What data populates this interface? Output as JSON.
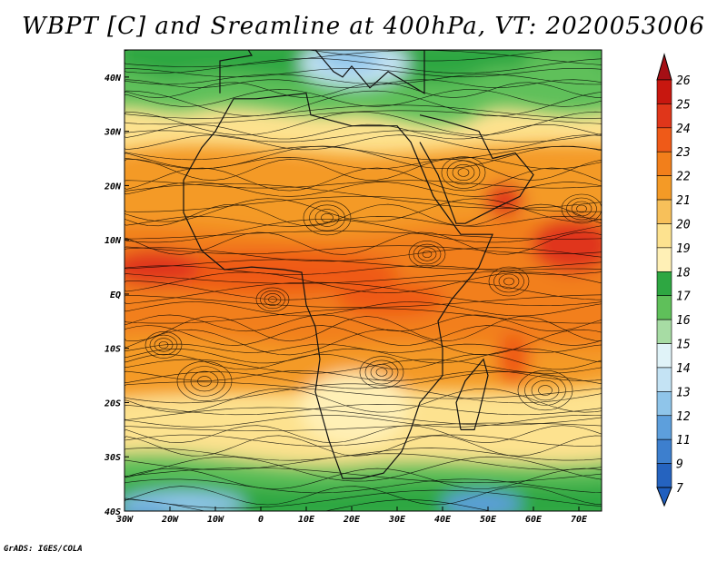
{
  "title": "WBPT [C] and Sreamline at 400hPa, VT: 2020053006",
  "credit": "GrADS: IGES/COLA",
  "map": {
    "lon_range": [
      -30,
      75
    ],
    "lat_range": [
      -40,
      45
    ],
    "x_ticks": [
      {
        "lon": -30,
        "label": "30W"
      },
      {
        "lon": -20,
        "label": "20W"
      },
      {
        "lon": -10,
        "label": "10W"
      },
      {
        "lon": 0,
        "label": "0"
      },
      {
        "lon": 10,
        "label": "10E"
      },
      {
        "lon": 20,
        "label": "20E"
      },
      {
        "lon": 30,
        "label": "30E"
      },
      {
        "lon": 40,
        "label": "40E"
      },
      {
        "lon": 50,
        "label": "50E"
      },
      {
        "lon": 60,
        "label": "60E"
      },
      {
        "lon": 70,
        "label": "70E"
      }
    ],
    "y_ticks": [
      {
        "lat": 40,
        "label": "40N"
      },
      {
        "lat": 30,
        "label": "30N"
      },
      {
        "lat": 20,
        "label": "20N"
      },
      {
        "lat": 10,
        "label": "10N"
      },
      {
        "lat": 0,
        "label": "EQ"
      },
      {
        "lat": -10,
        "label": "10S"
      },
      {
        "lat": -20,
        "label": "20S"
      },
      {
        "lat": -30,
        "label": "30S"
      },
      {
        "lat": -40,
        "label": "40S"
      }
    ]
  },
  "colorbar": {
    "levels": [
      {
        "label": "26",
        "color": "#a50f15"
      },
      {
        "label": "25",
        "color": "#c8170f"
      },
      {
        "label": "24",
        "color": "#e0361a"
      },
      {
        "label": "23",
        "color": "#ef5a18"
      },
      {
        "label": "22",
        "color": "#f27f1b"
      },
      {
        "label": "21",
        "color": "#f49a26"
      },
      {
        "label": "20",
        "color": "#f7c05a"
      },
      {
        "label": "19",
        "color": "#fde28f"
      },
      {
        "label": "18",
        "color": "#fff0b6"
      },
      {
        "label": "17",
        "color": "#2ea742"
      },
      {
        "label": "16",
        "color": "#5fc05a"
      },
      {
        "label": "15",
        "color": "#a7dca4"
      },
      {
        "label": "14",
        "color": "#e0f3f8"
      },
      {
        "label": "13",
        "color": "#c4e3f4"
      },
      {
        "label": "12",
        "color": "#8fc5ea"
      },
      {
        "label": "11",
        "color": "#5d9fdc"
      },
      {
        "label": "9",
        "color": "#3d7fce"
      },
      {
        "label": "7",
        "color": "#2563bf"
      }
    ],
    "min_color": "#1f5fbf"
  }
}
